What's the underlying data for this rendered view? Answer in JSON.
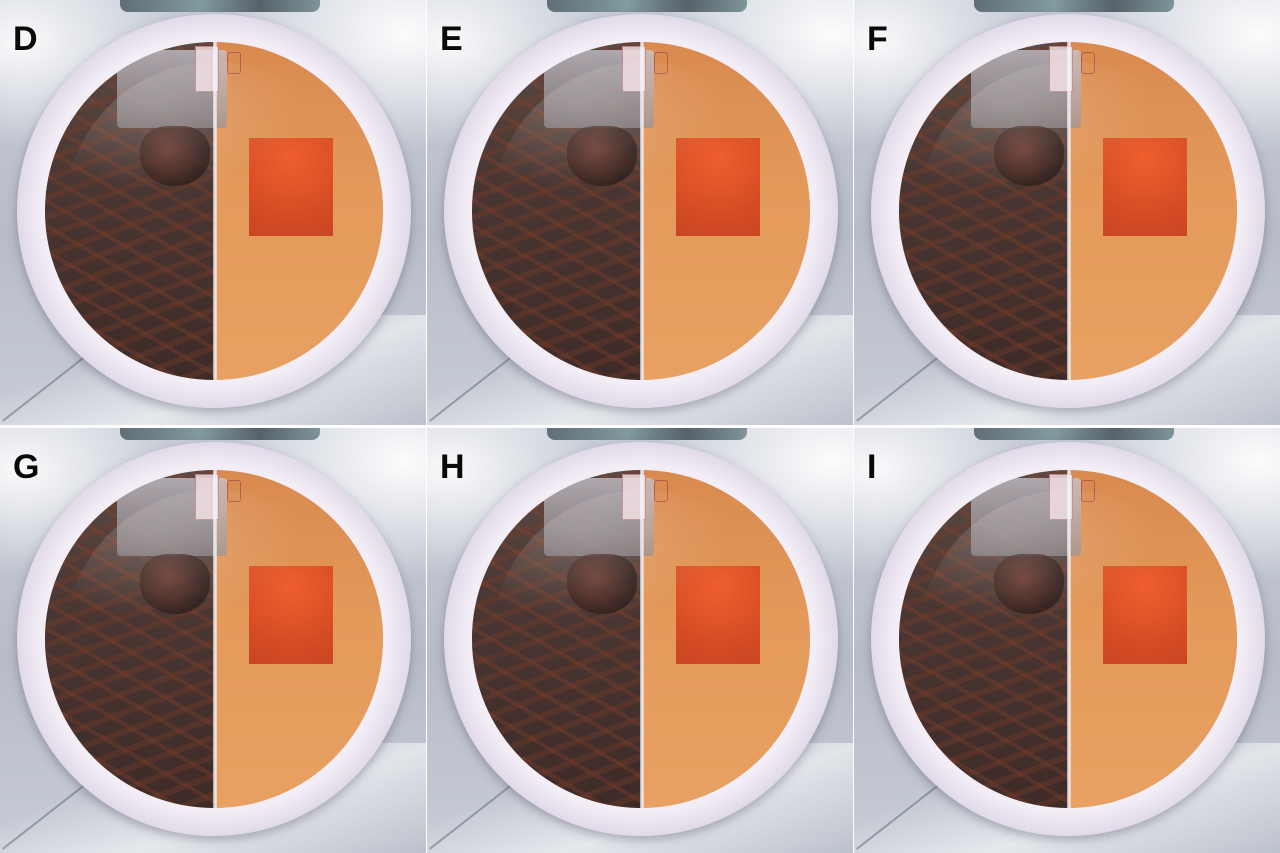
{
  "figure": {
    "panels": [
      {
        "label": "D"
      },
      {
        "label": "E"
      },
      {
        "label": "F"
      },
      {
        "label": "G"
      },
      {
        "label": "H"
      },
      {
        "label": "I"
      }
    ]
  }
}
